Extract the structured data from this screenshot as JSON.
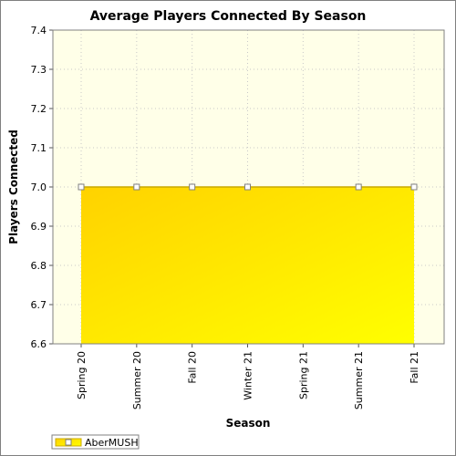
{
  "chart_data": {
    "type": "area",
    "title": "Average Players Connected By Season",
    "xlabel": "Season",
    "ylabel": "Players Connected",
    "categories": [
      "Spring 20",
      "Summer 20",
      "Fall 20",
      "Winter 21",
      "Spring 21",
      "Summer 21",
      "Fall 21"
    ],
    "ylim": [
      6.6,
      7.4
    ],
    "yticks": [
      "6.6",
      "6.7",
      "6.8",
      "6.9",
      "7.0",
      "7.1",
      "7.2",
      "7.3",
      "7.4"
    ],
    "series": [
      {
        "name": "AberMUSH",
        "color": "#ffd700",
        "points": [
          {
            "x": "Spring 20",
            "y": 7.0
          },
          {
            "x": "Summer 20",
            "y": 7.0
          },
          {
            "x": "Fall 20",
            "y": 7.0
          },
          {
            "x": "Winter 21",
            "y": 7.0
          },
          {
            "x": "Summer 21",
            "y": 7.0
          },
          {
            "x": "Fall 21",
            "y": 7.0
          }
        ]
      }
    ],
    "grid": true,
    "legend_position": "bottom-left",
    "background": "#ffffe8"
  }
}
